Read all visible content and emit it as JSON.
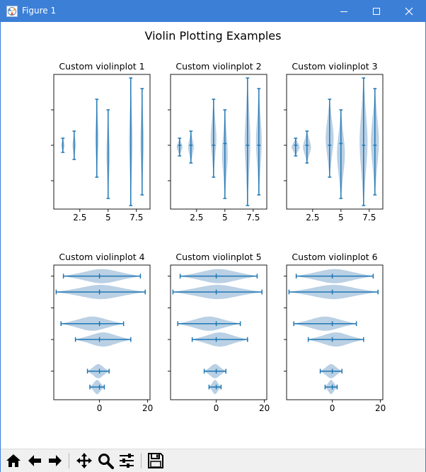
{
  "window": {
    "title": "Figure 1"
  },
  "toolbar": {
    "buttons": [
      "home-icon",
      "back-arrow-icon",
      "forward-arrow-icon",
      "pan-icon",
      "zoom-icon",
      "configure-subplots-icon",
      "save-icon"
    ]
  },
  "colors": {
    "titlebar": "#3c7fd6",
    "violin_fill": "#b6cde3",
    "violin_line": "#1f77b4",
    "toolbar": "#f0f0f0"
  },
  "figure": {
    "title": "Violin Plotting Examples"
  },
  "chart_data": [
    {
      "type": "violin",
      "title": "Custom violinplot 1",
      "orientation": "vertical",
      "xlim": [
        0.2,
        8.7
      ],
      "ylim": [
        -18,
        20
      ],
      "xticks": [
        2.5,
        5.0,
        7.5
      ],
      "ytick_values": [
        -10,
        0,
        10
      ],
      "ytick_labels_visible": false,
      "showmeans": false,
      "showmedians": false,
      "showextrema": true,
      "points": 20,
      "violins": [
        {
          "pos": 1,
          "min": -2,
          "max": 2,
          "mean": 0,
          "median": 0,
          "width": 0.3
        },
        {
          "pos": 2,
          "min": -4,
          "max": 4,
          "mean": 0,
          "median": 0,
          "width": 0.3
        },
        {
          "pos": 4,
          "min": -9,
          "max": 13,
          "mean": 0,
          "median": 0,
          "width": 0.3
        },
        {
          "pos": 5,
          "min": -15,
          "max": 10,
          "mean": 0,
          "median": 0,
          "width": 0.3
        },
        {
          "pos": 7,
          "min": -17,
          "max": 19,
          "mean": 0,
          "median": 0,
          "width": 0.3
        },
        {
          "pos": 8,
          "min": -14,
          "max": 16,
          "mean": 0,
          "median": 0,
          "width": 0.3
        }
      ]
    },
    {
      "type": "violin",
      "title": "Custom violinplot 2",
      "orientation": "vertical",
      "xlim": [
        0.2,
        8.7
      ],
      "ylim": [
        -18,
        20
      ],
      "xticks": [
        2.5,
        5.0,
        7.5
      ],
      "ytick_values": [
        -10,
        0,
        10
      ],
      "ytick_labels_visible": false,
      "showmeans": true,
      "showmedians": false,
      "showextrema": true,
      "points": 40,
      "violins": [
        {
          "pos": 1,
          "min": -3,
          "max": 2,
          "mean": 0,
          "median": 0,
          "width": 0.5
        },
        {
          "pos": 2,
          "min": -5,
          "max": 4,
          "mean": 0,
          "median": 0,
          "width": 0.5
        },
        {
          "pos": 4,
          "min": -9,
          "max": 13,
          "mean": 0,
          "median": 0,
          "width": 0.5
        },
        {
          "pos": 5,
          "min": -15,
          "max": 10,
          "mean": 0.5,
          "median": 0,
          "width": 0.5
        },
        {
          "pos": 7,
          "min": -17,
          "max": 19,
          "mean": 0,
          "median": 0,
          "width": 0.5
        },
        {
          "pos": 8,
          "min": -14,
          "max": 16,
          "mean": 0,
          "median": 0,
          "width": 0.5
        }
      ]
    },
    {
      "type": "violin",
      "title": "Custom violinplot 3",
      "orientation": "vertical",
      "xlim": [
        0.2,
        8.7
      ],
      "ylim": [
        -18,
        20
      ],
      "xticks": [
        2.5,
        5.0,
        7.5
      ],
      "ytick_values": [
        -10,
        0,
        10
      ],
      "ytick_labels_visible": false,
      "showmeans": false,
      "showmedians": true,
      "showextrema": true,
      "points": 60,
      "violins": [
        {
          "pos": 1,
          "min": -3,
          "max": 2,
          "mean": 0,
          "median": 0,
          "width": 0.7
        },
        {
          "pos": 2,
          "min": -5,
          "max": 4,
          "mean": 0,
          "median": 0,
          "width": 0.7
        },
        {
          "pos": 4,
          "min": -9,
          "max": 13,
          "mean": 0,
          "median": 0,
          "width": 0.7
        },
        {
          "pos": 5,
          "min": -15,
          "max": 10,
          "mean": 0,
          "median": 0.5,
          "width": 0.7
        },
        {
          "pos": 7,
          "min": -17,
          "max": 19,
          "mean": 0,
          "median": 0,
          "width": 0.7
        },
        {
          "pos": 8,
          "min": -14,
          "max": 16,
          "mean": 0,
          "median": 0,
          "width": 0.7
        }
      ]
    },
    {
      "type": "violin",
      "title": "Custom violinplot 4",
      "orientation": "horizontal",
      "xlim": [
        -19,
        21
      ],
      "ylim": [
        0.2,
        8.7
      ],
      "xticks": [
        0,
        20
      ],
      "ytick_values": [
        2,
        4,
        6,
        8
      ],
      "ytick_labels_visible": false,
      "showmeans": true,
      "showmedians": false,
      "showextrema": true,
      "points": 80,
      "violins": [
        {
          "pos": 1,
          "min": -4,
          "max": 2,
          "mean": 0,
          "median": 0,
          "width": 0.9
        },
        {
          "pos": 2,
          "min": -5,
          "max": 4,
          "mean": 0,
          "median": 0,
          "width": 0.9
        },
        {
          "pos": 4,
          "min": -10,
          "max": 13,
          "mean": 0,
          "median": 0,
          "width": 0.9
        },
        {
          "pos": 5,
          "min": -16,
          "max": 10,
          "mean": 0,
          "median": 0,
          "width": 0.9
        },
        {
          "pos": 7,
          "min": -18,
          "max": 19,
          "mean": 0,
          "median": 0,
          "width": 0.9
        },
        {
          "pos": 8,
          "min": -15,
          "max": 17,
          "mean": 0,
          "median": 0,
          "width": 0.9
        }
      ]
    },
    {
      "type": "violin",
      "title": "Custom violinplot 5",
      "orientation": "horizontal",
      "xlim": [
        -19,
        21
      ],
      "ylim": [
        0.2,
        8.7
      ],
      "xticks": [
        0,
        20
      ],
      "ytick_values": [
        2,
        4,
        6,
        8
      ],
      "ytick_labels_visible": false,
      "showmeans": true,
      "showmedians": false,
      "showextrema": true,
      "points": 100,
      "violins": [
        {
          "pos": 1,
          "min": -3,
          "max": 2,
          "mean": 0,
          "median": 0,
          "width": 0.9
        },
        {
          "pos": 2,
          "min": -5,
          "max": 4,
          "mean": 0,
          "median": 0,
          "width": 0.9
        },
        {
          "pos": 4,
          "min": -10,
          "max": 13,
          "mean": 0,
          "median": 0,
          "width": 0.9
        },
        {
          "pos": 5,
          "min": -16,
          "max": 10,
          "mean": 0,
          "median": 0,
          "width": 0.9
        },
        {
          "pos": 7,
          "min": -18,
          "max": 19,
          "mean": 0,
          "median": 0,
          "width": 0.9
        },
        {
          "pos": 8,
          "min": -15,
          "max": 17,
          "mean": 0,
          "median": 0,
          "width": 0.9
        }
      ]
    },
    {
      "type": "violin",
      "title": "Custom violinplot 6",
      "orientation": "horizontal",
      "xlim": [
        -19,
        21
      ],
      "ylim": [
        0.2,
        8.7
      ],
      "xticks": [
        0,
        20
      ],
      "ytick_values": [
        2,
        4,
        6,
        8
      ],
      "ytick_labels_visible": false,
      "showmeans": false,
      "showmedians": true,
      "showextrema": true,
      "points": 200,
      "violins": [
        {
          "pos": 1,
          "min": -3,
          "max": 2,
          "mean": 0,
          "median": 0,
          "width": 0.9
        },
        {
          "pos": 2,
          "min": -5,
          "max": 4,
          "mean": 0,
          "median": 0,
          "width": 0.9
        },
        {
          "pos": 4,
          "min": -10,
          "max": 13,
          "mean": 0,
          "median": 0,
          "width": 0.9
        },
        {
          "pos": 5,
          "min": -16,
          "max": 10,
          "mean": 0,
          "median": 0,
          "width": 0.9
        },
        {
          "pos": 7,
          "min": -18,
          "max": 19,
          "mean": 0,
          "median": 0,
          "width": 0.9
        },
        {
          "pos": 8,
          "min": -15,
          "max": 17,
          "mean": 0,
          "median": 0,
          "width": 0.9
        }
      ]
    }
  ]
}
